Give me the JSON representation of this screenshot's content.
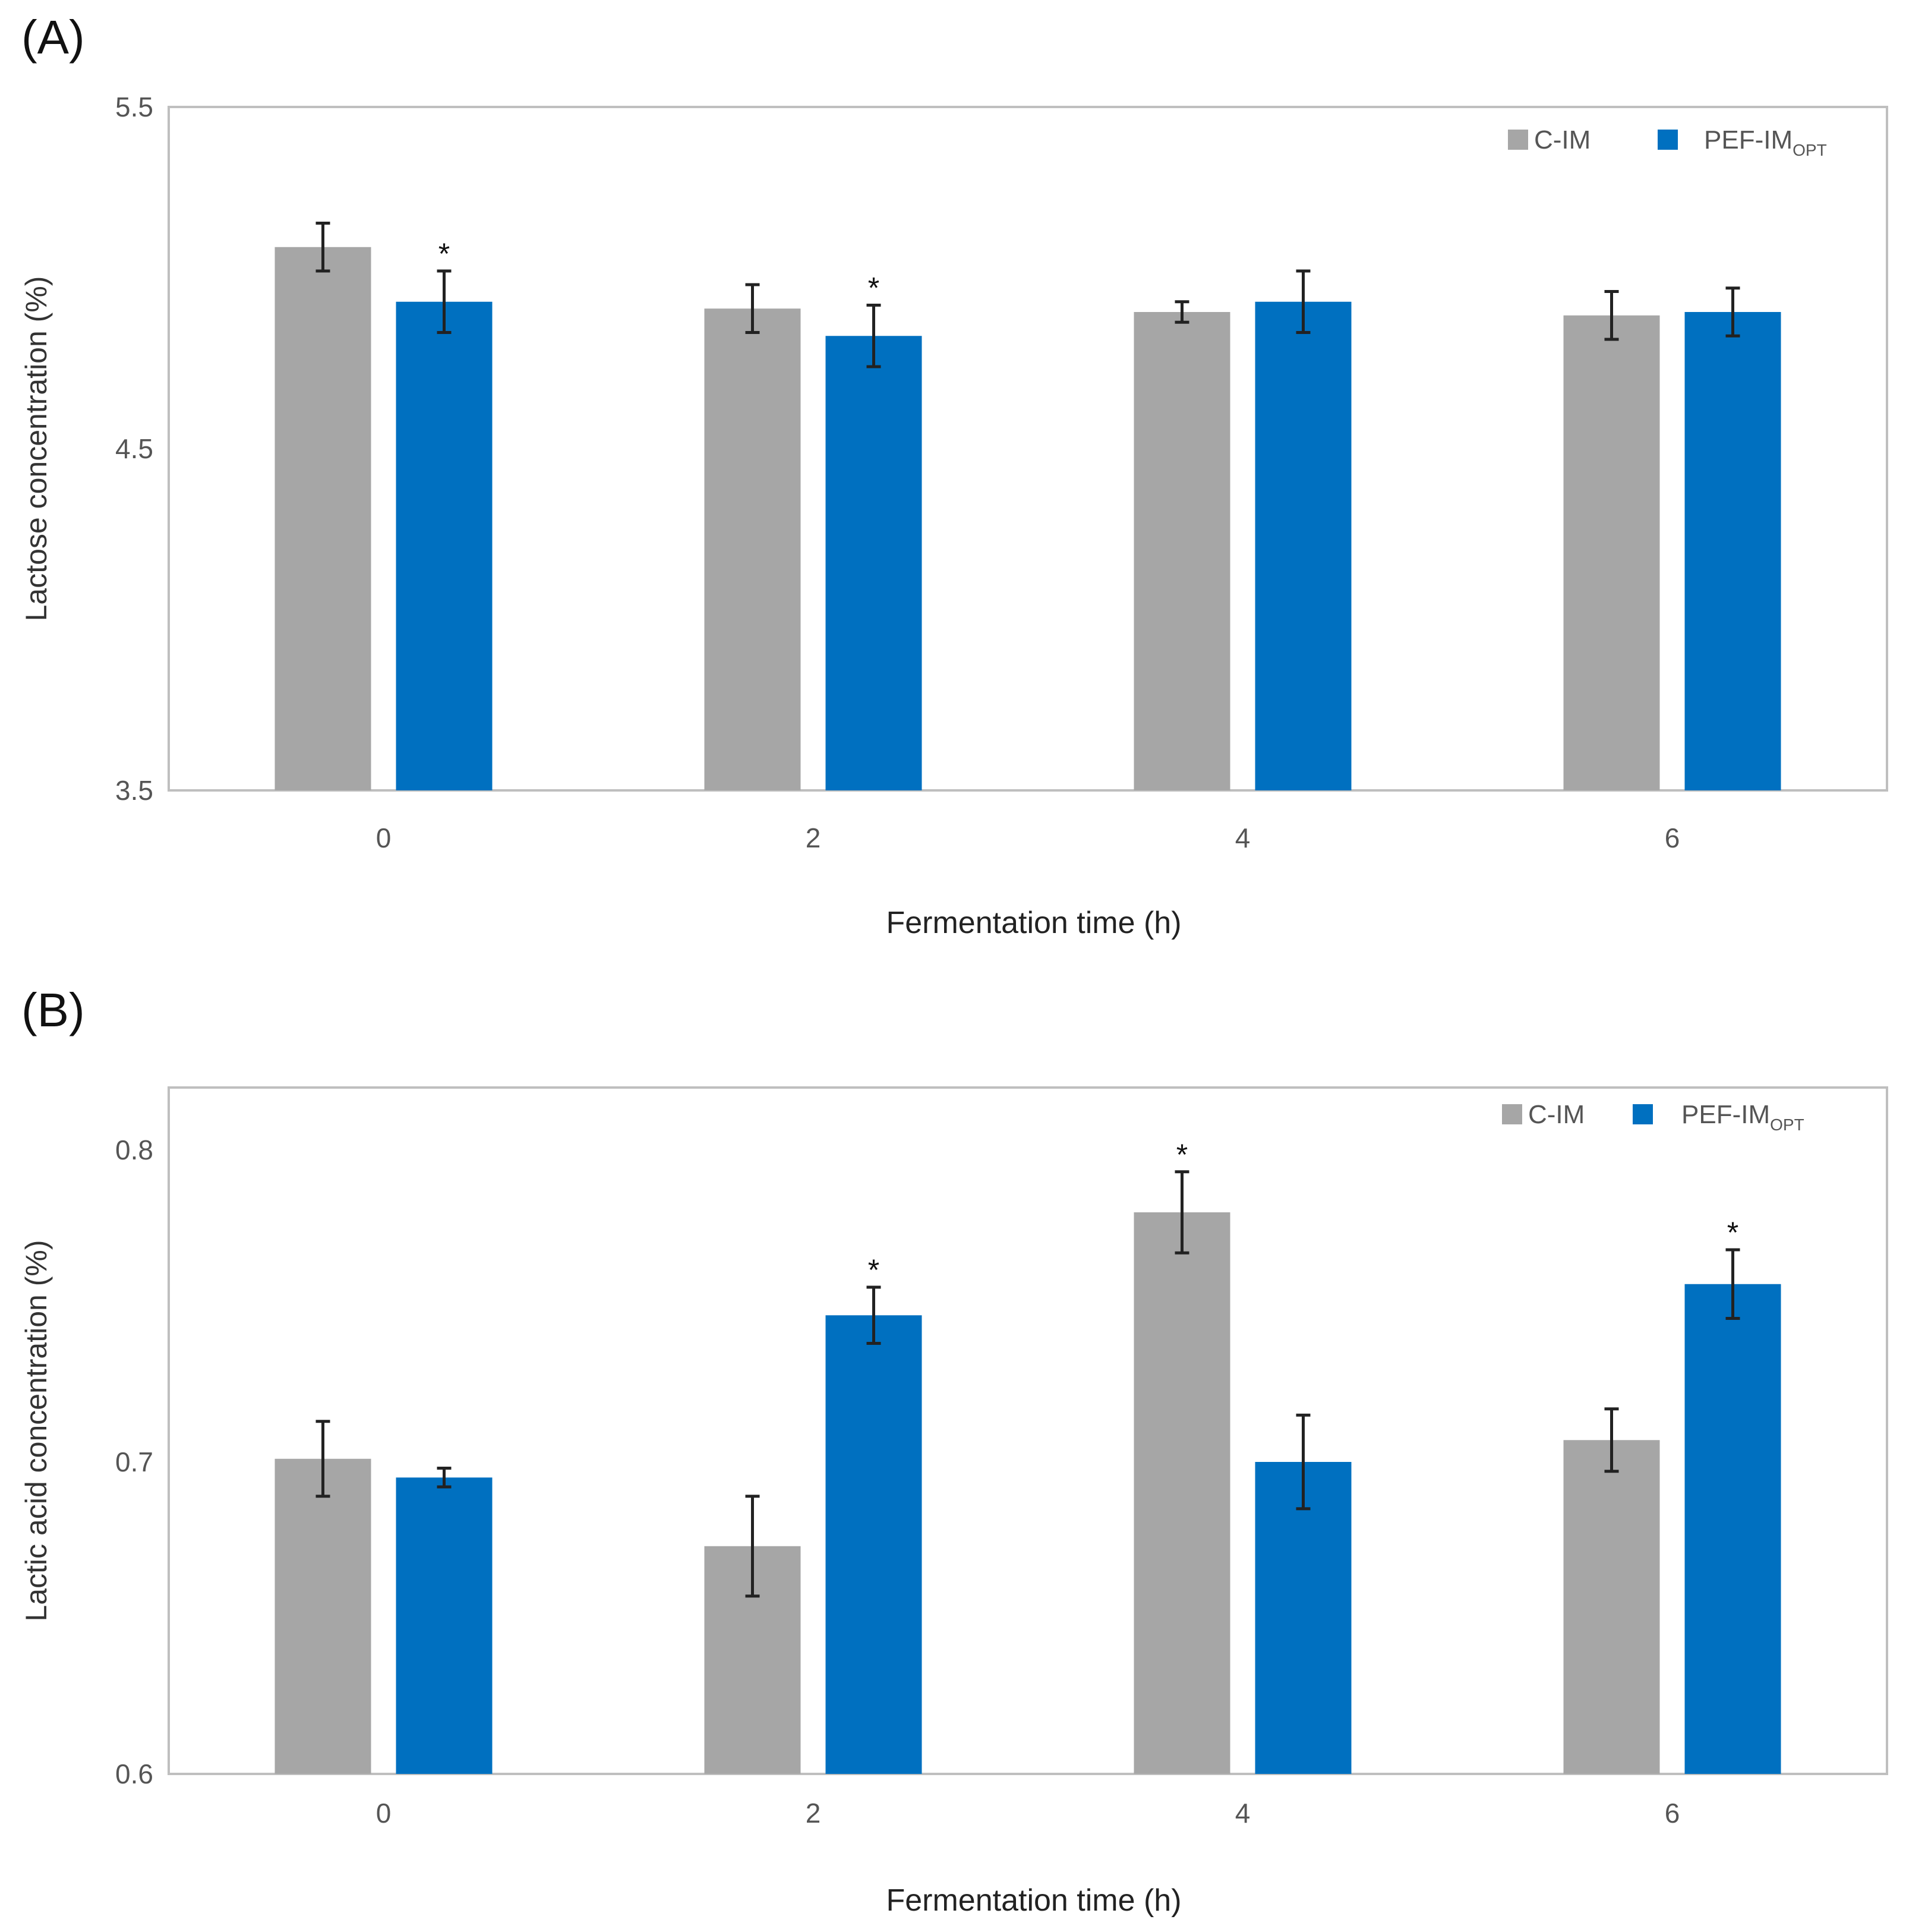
{
  "chart_data": [
    {
      "type": "bar",
      "panel_label": "(A)",
      "categories": [
        "0",
        "2",
        "4",
        "6"
      ],
      "xlabel": "Fermentation time (h)",
      "ylabel": "Lactose concentration (%)",
      "ylim": [
        3.5,
        5.5
      ],
      "yticks": [
        "3.5",
        "4.5",
        "5.5"
      ],
      "legend": {
        "position": "top-right"
      },
      "series": [
        {
          "name": "C-IM",
          "name_sub": "",
          "color": "#a6a6a6",
          "values": [
            5.09,
            4.91,
            4.9,
            4.89
          ],
          "errors": [
            0.07,
            0.07,
            0.03,
            0.07
          ],
          "significant": [
            false,
            false,
            false,
            false
          ]
        },
        {
          "name": "PEF-IM",
          "name_sub": "OPT",
          "color": "#0070c0",
          "values": [
            4.93,
            4.83,
            4.93,
            4.9
          ],
          "errors": [
            0.09,
            0.09,
            0.09,
            0.07
          ],
          "significant": [
            true,
            true,
            false,
            false
          ]
        }
      ],
      "significance_marker": "*"
    },
    {
      "type": "bar",
      "panel_label": "(B)",
      "categories": [
        "0",
        "2",
        "4",
        "6"
      ],
      "xlabel": "Fermentation time (h)",
      "ylabel": "Lactic acid concentration (%)",
      "ylim": [
        0.6,
        0.82
      ],
      "yticks": [
        "0.6",
        "0.7",
        "0.8"
      ],
      "legend": {
        "position": "top-right"
      },
      "series": [
        {
          "name": "C-IM",
          "name_sub": "",
          "color": "#a6a6a6",
          "values": [
            0.701,
            0.673,
            0.78,
            0.707
          ],
          "errors": [
            0.012,
            0.016,
            0.013,
            0.01
          ],
          "significant": [
            false,
            false,
            true,
            false
          ]
        },
        {
          "name": "PEF-IM",
          "name_sub": "OPT",
          "color": "#0070c0",
          "values": [
            0.695,
            0.747,
            0.7,
            0.757
          ],
          "errors": [
            0.003,
            0.009,
            0.015,
            0.011
          ],
          "significant": [
            false,
            true,
            false,
            true
          ]
        }
      ],
      "significance_marker": "*"
    }
  ]
}
